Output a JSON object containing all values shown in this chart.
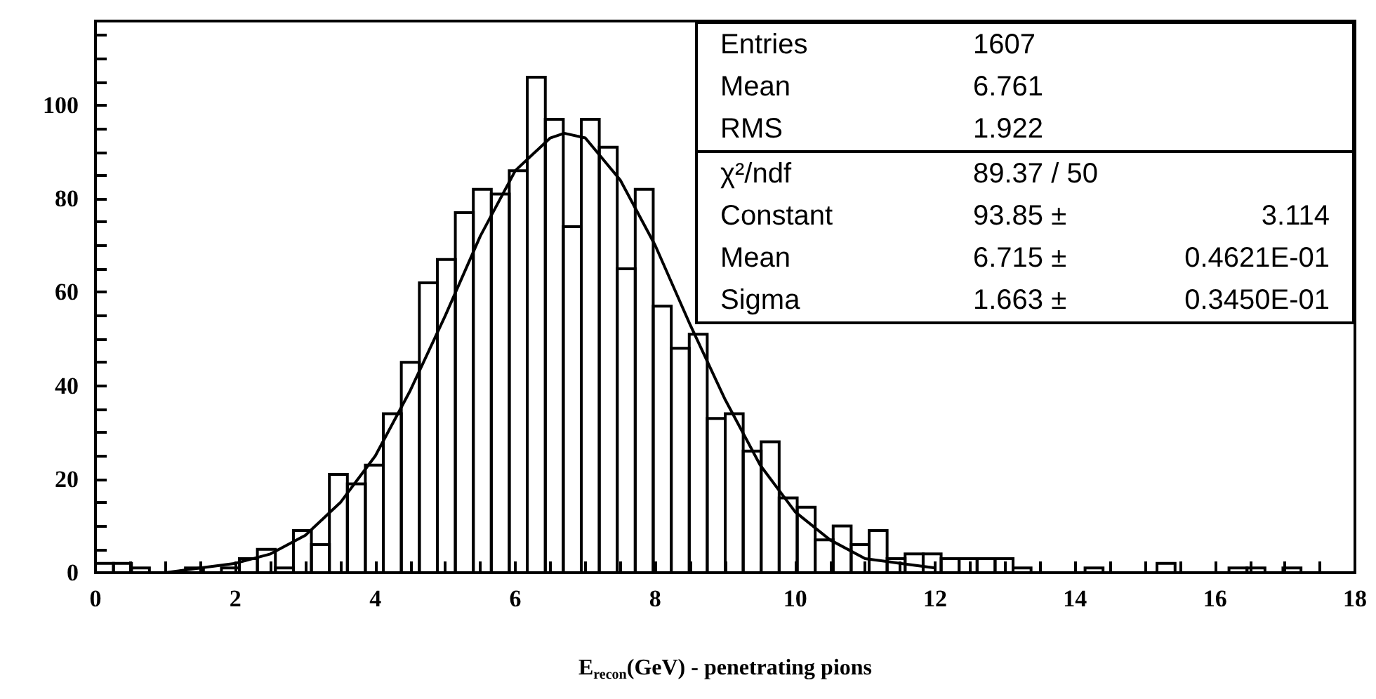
{
  "chart_data": {
    "type": "histogram",
    "xlabel": "E$_{recon}$(GeV) - penetrating pions",
    "xlim": [
      0,
      18
    ],
    "xticks": [
      0,
      {
        "value": 0.5,
        "label": null
      },
      {
        "value": 1,
        "label": null
      },
      {
        "value": 1.5,
        "label": null
      },
      2,
      {
        "value": 2.5,
        "label": null
      },
      {
        "value": 3,
        "label": null
      },
      {
        "value": 3.5,
        "label": null
      },
      4,
      {
        "value": 4.5,
        "label": null
      },
      {
        "value": 5,
        "label": null
      },
      {
        "value": 5.5,
        "label": null
      },
      6,
      {
        "value": 6.5,
        "label": null
      },
      {
        "value": 7,
        "label": null
      },
      {
        "value": 7.5,
        "label": null
      },
      8,
      {
        "value": 8.5,
        "label": null
      },
      {
        "value": 9,
        "label": null
      },
      {
        "value": 9.5,
        "label": null
      },
      10,
      {
        "value": 10.5,
        "label": null
      },
      {
        "value": 11,
        "label": null
      },
      {
        "value": 11.5,
        "label": null
      },
      12,
      {
        "value": 12.5,
        "label": null
      },
      {
        "value": 13,
        "label": null
      },
      {
        "value": 13.5,
        "label": null
      },
      14,
      {
        "value": 14.5,
        "label": null
      },
      {
        "value": 15,
        "label": null
      },
      {
        "value": 15.5,
        "label": null
      },
      16,
      {
        "value": 16.5,
        "label": null
      },
      {
        "value": 17,
        "label": null
      },
      {
        "value": 17.5,
        "label": null
      },
      18
    ],
    "ylim": [
      0,
      118
    ],
    "yticks": [
      0,
      {
        "value": 5,
        "label": null
      },
      {
        "value": 10,
        "label": null
      },
      {
        "value": 15,
        "label": null
      },
      20,
      {
        "value": 25,
        "label": null
      },
      {
        "value": 30,
        "label": null
      },
      {
        "value": 35,
        "label": null
      },
      40,
      {
        "value": 45,
        "label": null
      },
      {
        "value": 50,
        "label": null
      },
      {
        "value": 55,
        "label": null
      },
      60,
      {
        "value": 65,
        "label": null
      },
      {
        "value": 70,
        "label": null
      },
      {
        "value": 75,
        "label": null
      },
      80,
      {
        "value": 85,
        "label": null
      },
      {
        "value": 90,
        "label": null
      },
      {
        "value": 95,
        "label": null
      },
      100,
      {
        "value": 105,
        "label": null
      },
      {
        "value": 110,
        "label": null
      },
      {
        "value": 115,
        "label": null
      }
    ],
    "series": [
      {
        "type": "histogram",
        "color": "#000000",
        "bins": [
          0,
          0.257,
          0.514,
          0.771,
          1.029,
          1.286,
          1.543,
          1.8,
          2.057,
          2.314,
          2.571,
          2.829,
          3.086,
          3.343,
          3.6,
          3.857,
          4.114,
          4.371,
          4.629,
          4.886,
          5.143,
          5.4,
          5.657,
          5.914,
          6.171,
          6.429,
          6.686,
          6.943,
          7.2,
          7.457,
          7.714,
          7.971,
          8.229,
          8.486,
          8.743,
          9,
          9.257,
          9.514,
          9.771,
          10.029,
          10.286,
          10.543,
          10.8,
          11.057,
          11.314,
          11.571,
          11.829,
          12.086,
          12.343,
          12.6,
          12.857,
          13.114,
          13.371,
          13.629,
          13.886,
          14.143,
          14.4,
          14.657,
          14.914,
          15.171,
          15.429,
          15.686,
          15.943,
          16.2,
          16.457,
          16.714,
          16.971,
          17.229,
          17.486,
          17.743,
          18
        ],
        "values": [
          2,
          2,
          1,
          0,
          0,
          1,
          0,
          1,
          3,
          5,
          1,
          9,
          6,
          21,
          19,
          23,
          34,
          45,
          62,
          67,
          77,
          82,
          81,
          86,
          106,
          97,
          74,
          97,
          91,
          65,
          82,
          57,
          48,
          51,
          33,
          34,
          26,
          28,
          16,
          14,
          7,
          10,
          6,
          9,
          3,
          4,
          4,
          3,
          3,
          3,
          3,
          1,
          0,
          0,
          0,
          1,
          0,
          0,
          0,
          2,
          0,
          0,
          0,
          1,
          1,
          0,
          1,
          0,
          0,
          0
        ]
      },
      {
        "type": "line",
        "color": "#000000",
        "x": [
          1,
          1.5,
          2,
          2.5,
          3,
          3.5,
          4,
          4.5,
          5,
          5.5,
          6,
          6.5,
          6.7,
          7,
          7.5,
          8,
          8.5,
          9,
          9.5,
          10,
          10.5,
          11,
          11.5,
          12
        ],
        "values": [
          0,
          1,
          2,
          4,
          8,
          15,
          25,
          39,
          55,
          72,
          86,
          93,
          94,
          93,
          84,
          70,
          53,
          37,
          23,
          13,
          7,
          3,
          2,
          1
        ]
      }
    ],
    "annotations": [
      "Entries 1607",
      "Mean 6.761",
      "RMS 1.922",
      "χ²/ndf 89.37 / 50",
      "Constant 93.85 ± 3.114",
      "Mean 6.715 ± 0.4621E-01",
      "Sigma 1.663 ± 0.3450E-01"
    ]
  }
}
